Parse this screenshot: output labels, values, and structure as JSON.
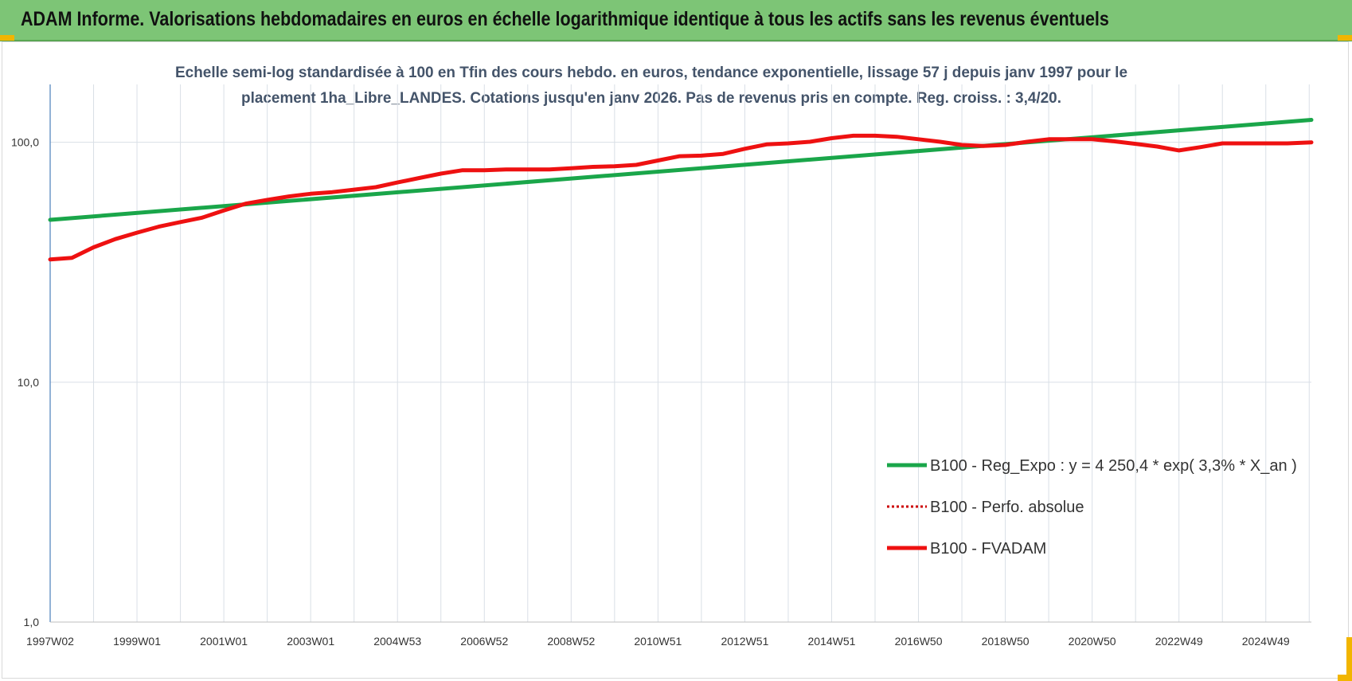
{
  "header": {
    "title": "ADAM Informe. Valorisations hebdomadaires en euros en échelle logarithmique identique à tous les actifs sans les revenus éventuels"
  },
  "colors": {
    "header_bg": "#7dc576",
    "trend": "#1aa64a",
    "fvadam": "#ee1111",
    "perf": "#cc0000",
    "grid": "#d9dfe6",
    "corner_marks": "#f2b500"
  },
  "chart_data": {
    "type": "line",
    "title_lines": [
      "Echelle semi-log standardisée à 100 en Tfin des cours hebdo. en euros, tendance exponentielle, lissage 57 j depuis janv 1997 pour le",
      "placement 1ha_Libre_LANDES. Cotations jusqu'en janv 2026. Pas de revenus pris en compte. Reg. croiss. : 3,4/20."
    ],
    "y_scale": "log",
    "ylim": [
      1,
      200
    ],
    "y_ticks": [
      {
        "value": 1,
        "label": "1,0"
      },
      {
        "value": 10,
        "label": "10,0"
      },
      {
        "value": 100,
        "label": "100,0"
      }
    ],
    "xlim": [
      1997.0,
      2026.05
    ],
    "x_ticks": [
      {
        "value": 1997.0,
        "label": "1997W02"
      },
      {
        "value": 1999.0,
        "label": "1999W01"
      },
      {
        "value": 2001.0,
        "label": "2001W01"
      },
      {
        "value": 2003.0,
        "label": "2003W01"
      },
      {
        "value": 2005.0,
        "label": "2004W53"
      },
      {
        "value": 2007.0,
        "label": "2006W52"
      },
      {
        "value": 2009.0,
        "label": "2008W52"
      },
      {
        "value": 2011.0,
        "label": "2010W51"
      },
      {
        "value": 2013.0,
        "label": "2012W51"
      },
      {
        "value": 2015.0,
        "label": "2014W51"
      },
      {
        "value": 2017.0,
        "label": "2016W50"
      },
      {
        "value": 2019.0,
        "label": "2018W50"
      },
      {
        "value": 2021.0,
        "label": "2020W50"
      },
      {
        "value": 2023.0,
        "label": "2022W49"
      },
      {
        "value": 2025.0,
        "label": "2024W49"
      }
    ],
    "grid": true,
    "legend_position": "lower-right",
    "series": [
      {
        "name": "B100 - Reg_Expo : y = 4 250,4 * exp( 3,3% *  X_an )",
        "style": "solid-green",
        "x": [
          1997.0,
          2026.05
        ],
        "y": [
          47.5,
          124
        ]
      },
      {
        "name": "B100 - Perfo. absolue",
        "style": "dotted-red",
        "x": [],
        "y": []
      },
      {
        "name": "B100 - FVADAM",
        "style": "solid-red",
        "x": [
          1997.0,
          1997.5,
          1998.0,
          1998.5,
          1999.0,
          1999.5,
          2000.0,
          2000.5,
          2001.0,
          2001.5,
          2002.0,
          2002.5,
          2003.0,
          2003.5,
          2004.0,
          2004.5,
          2005.0,
          2005.5,
          2006.0,
          2006.5,
          2007.0,
          2007.5,
          2008.0,
          2008.5,
          2009.0,
          2009.5,
          2010.0,
          2010.5,
          2011.0,
          2011.5,
          2012.0,
          2012.5,
          2013.0,
          2013.5,
          2014.0,
          2014.5,
          2015.0,
          2015.5,
          2016.0,
          2016.5,
          2017.0,
          2017.5,
          2018.0,
          2018.5,
          2019.0,
          2019.5,
          2020.0,
          2020.5,
          2021.0,
          2021.5,
          2022.0,
          2022.5,
          2023.0,
          2023.5,
          2024.0,
          2024.5,
          2025.0,
          2025.5,
          2026.05
        ],
        "y": [
          32.5,
          33,
          36.5,
          39.5,
          42,
          44.5,
          46.5,
          48.5,
          52,
          55.5,
          57.5,
          59.5,
          61,
          62,
          63.5,
          65,
          68,
          71,
          74,
          76.5,
          76.5,
          77,
          77,
          77,
          78,
          79,
          79.5,
          80.5,
          84,
          87.5,
          88,
          89.5,
          94,
          98,
          99,
          100.5,
          104,
          106.5,
          106.5,
          105.5,
          103,
          100.5,
          97.5,
          96.5,
          97.5,
          100.5,
          103,
          103,
          103,
          101,
          98.5,
          96,
          92.5,
          95.5,
          99,
          99,
          99,
          99,
          100
        ]
      }
    ]
  }
}
